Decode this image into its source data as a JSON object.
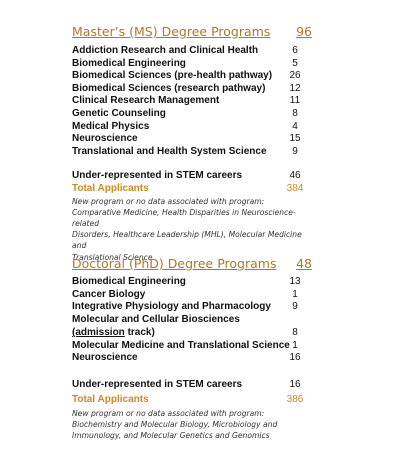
{
  "masters": {
    "heading": "Master’s (MS) Degree Programs",
    "heading_count": "96",
    "programs": [
      {
        "name": "Addiction Research and Clinical Health",
        "count": "6"
      },
      {
        "name": "Biomedical Engineering",
        "count": "5"
      },
      {
        "name": "Biomedical Sciences (pre-health pathway)",
        "count": "26"
      },
      {
        "name": "Biomedical Sciences (research pathway)",
        "count": "12"
      },
      {
        "name": "Clinical Research Management",
        "count": "11"
      },
      {
        "name": "Genetic Counseling",
        "count": "8"
      },
      {
        "name": "Medical Physics",
        "count": "4"
      },
      {
        "name": "Neuroscience",
        "count": "15"
      },
      {
        "name": "Translational and Health System Science",
        "count": "9"
      }
    ],
    "underrep_label": "Under-represented in STEM careers",
    "underrep_count": "46",
    "total_label": "Total Applicants",
    "total_count": "384",
    "note_lines": [
      "New program or no data associated with program:",
      "Comparative Medicine, Health Disparities in Neuroscience-related",
      "Disorders, Healthcare Leadership (MHL), Molecular Medicine and",
      "Translational Science"
    ]
  },
  "doctoral": {
    "heading": "Doctoral (PhD) Degree Programs",
    "heading_count": "48",
    "programs": [
      {
        "name": "Biomedical Engineering",
        "count": "13"
      },
      {
        "name": "Cancer Biology",
        "count": "1"
      },
      {
        "name": "Integrative Physiology and Pharmacology",
        "count": "9"
      }
    ],
    "mcb_line1": "Molecular and Cellular Biosciences",
    "mcb_line2_underlined": "(admission",
    "mcb_line2_rest": " track)",
    "mcb_count": "8",
    "programs_after": [
      {
        "name": "Molecular Medicine and Translational Science",
        "count": "1"
      },
      {
        "name": "Neuroscience",
        "count": "16"
      }
    ],
    "underrep_label": "Under-represented in STEM careers",
    "underrep_count": "16",
    "total_label": "Total Applicants",
    "total_count": "386",
    "note_lines": [
      "New program or no data associated with program:",
      "Biochemistry and Molecular Biology, Microbiology and",
      "Immunology, and Molecular Genetics and Genomics"
    ]
  }
}
